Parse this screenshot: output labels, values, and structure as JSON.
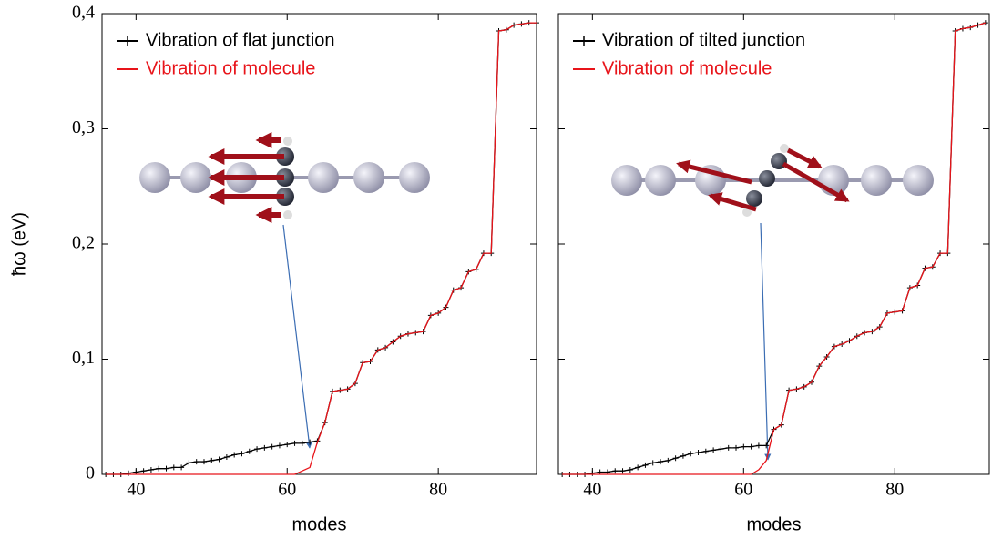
{
  "chart_data": [
    {
      "type": "line",
      "y_label": "ħω (eV)",
      "x_label": "modes",
      "xlim": [
        35.5,
        93
      ],
      "ylim": [
        0,
        0.4
      ],
      "xticks": [
        40,
        60,
        80
      ],
      "yticks": [
        0,
        {
          "value": 0.1,
          "label": "0,1"
        },
        {
          "value": 0.2,
          "label": "0,2"
        },
        {
          "value": 0.3,
          "label": "0,3"
        },
        {
          "value": 0.4,
          "label": "0,4"
        }
      ],
      "x": [
        36,
        37,
        38,
        39,
        40,
        41,
        42,
        43,
        44,
        45,
        46,
        47,
        48,
        49,
        50,
        51,
        52,
        53,
        54,
        55,
        56,
        57,
        58,
        59,
        60,
        61,
        62,
        63,
        64,
        65,
        66,
        67,
        68,
        69,
        70,
        71,
        72,
        73,
        74,
        75,
        76,
        77,
        78,
        79,
        80,
        81,
        82,
        83,
        84,
        85,
        86,
        87,
        88,
        89,
        90,
        91,
        92,
        93
      ],
      "series": [
        {
          "name": "Vibration of flat junction",
          "color": "#000000",
          "markers": true,
          "values": [
            0,
            0,
            0,
            0.001,
            0.002,
            0.003,
            0.004,
            0.005,
            0.005,
            0.006,
            0.006,
            0.01,
            0.011,
            0.011,
            0.012,
            0.013,
            0.015,
            0.017,
            0.018,
            0.02,
            0.022,
            0.023,
            0.024,
            0.025,
            0.026,
            0.027,
            0.027,
            0.028,
            0.029,
            0.045,
            0.072,
            0.073,
            0.074,
            0.079,
            0.097,
            0.098,
            0.108,
            0.11,
            0.115,
            0.12,
            0.122,
            0.123,
            0.124,
            0.138,
            0.14,
            0.145,
            0.16,
            0.162,
            0.176,
            0.178,
            0.192,
            0.192,
            0.385,
            0.386,
            0.39,
            0.391,
            0.392,
            0.392
          ]
        },
        {
          "name": "Vibration of molecule",
          "color": "#e8141a",
          "markers": false,
          "values": [
            0,
            0,
            0,
            0,
            0,
            0,
            0,
            0,
            0,
            0,
            0,
            0,
            0,
            0,
            0,
            0,
            0,
            0,
            0,
            0,
            0,
            0,
            0,
            0,
            0,
            0,
            0.003,
            0.006,
            0.028,
            0.045,
            0.072,
            0.073,
            0.074,
            0.079,
            0.097,
            0.098,
            0.108,
            0.11,
            0.115,
            0.12,
            0.122,
            0.123,
            0.124,
            0.138,
            0.14,
            0.145,
            0.16,
            0.162,
            0.176,
            0.178,
            0.192,
            0.192,
            0.385,
            0.386,
            0.39,
            0.391,
            0.392,
            0.392
          ]
        }
      ]
    },
    {
      "type": "line",
      "x_label": "modes",
      "xlim": [
        35.5,
        92.5
      ],
      "ylim": [
        0,
        0.4
      ],
      "xticks": [
        40,
        60,
        80
      ],
      "yticks": [
        0,
        0.1,
        0.2,
        0.3,
        0.4
      ],
      "x": [
        36,
        37,
        38,
        39,
        40,
        41,
        42,
        43,
        44,
        45,
        46,
        47,
        48,
        49,
        50,
        51,
        52,
        53,
        54,
        55,
        56,
        57,
        58,
        59,
        60,
        61,
        62,
        63,
        64,
        65,
        66,
        67,
        68,
        69,
        70,
        71,
        72,
        73,
        74,
        75,
        76,
        77,
        78,
        79,
        80,
        81,
        82,
        83,
        84,
        85,
        86,
        87,
        88,
        89,
        90,
        91,
        92
      ],
      "series": [
        {
          "name": "Vibration of tilted junction",
          "color": "#000000",
          "markers": true,
          "values": [
            0,
            0,
            0,
            0,
            0.001,
            0.002,
            0.002,
            0.003,
            0.003,
            0.004,
            0.006,
            0.008,
            0.01,
            0.011,
            0.012,
            0.014,
            0.016,
            0.018,
            0.019,
            0.02,
            0.021,
            0.022,
            0.023,
            0.023,
            0.024,
            0.024,
            0.025,
            0.025,
            0.039,
            0.043,
            0.073,
            0.074,
            0.076,
            0.08,
            0.094,
            0.102,
            0.111,
            0.113,
            0.116,
            0.12,
            0.123,
            0.124,
            0.128,
            0.14,
            0.141,
            0.142,
            0.162,
            0.164,
            0.179,
            0.18,
            0.192,
            0.192,
            0.385,
            0.387,
            0.388,
            0.39,
            0.392
          ]
        },
        {
          "name": "Vibration of molecule",
          "color": "#e8141a",
          "markers": false,
          "values": [
            0,
            0,
            0,
            0,
            0,
            0,
            0,
            0,
            0,
            0,
            0,
            0,
            0,
            0,
            0,
            0,
            0,
            0,
            0,
            0,
            0,
            0,
            0,
            0,
            0,
            0,
            0.004,
            0.012,
            0.039,
            0.043,
            0.073,
            0.074,
            0.076,
            0.08,
            0.094,
            0.102,
            0.111,
            0.113,
            0.116,
            0.12,
            0.123,
            0.124,
            0.128,
            0.14,
            0.141,
            0.142,
            0.162,
            0.164,
            0.179,
            0.18,
            0.192,
            0.192,
            0.385,
            0.387,
            0.388,
            0.39,
            0.392
          ]
        }
      ]
    }
  ]
}
